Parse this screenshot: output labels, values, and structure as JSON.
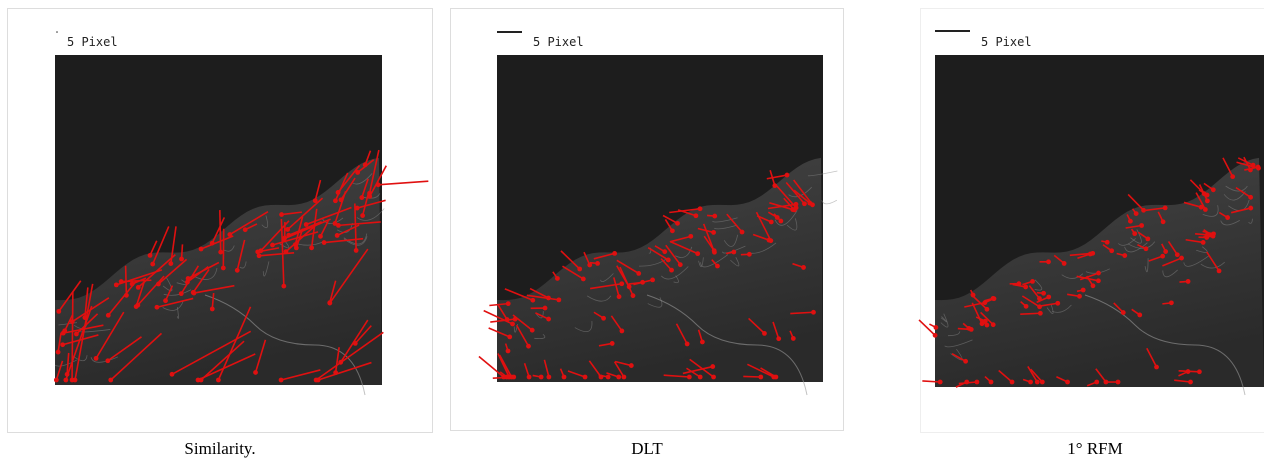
{
  "panels": [
    {
      "scale_label": "5 Pixel",
      "caption": "Similarity."
    },
    {
      "scale_label": "5 Pixel",
      "caption": "DLT"
    },
    {
      "scale_label": "5 Pixel",
      "caption": "1° RFM"
    }
  ]
}
